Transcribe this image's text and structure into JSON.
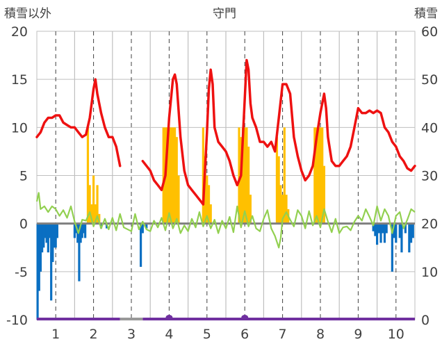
{
  "chart_data": {
    "type": "line",
    "title": "守門",
    "left_axis_title": "積雪以外",
    "right_axis_title": "積雪",
    "left_axis": {
      "min": -10,
      "max": 20,
      "ticks": [
        -10,
        -5,
        0,
        5,
        10,
        15,
        20
      ]
    },
    "right_axis": {
      "min": 0,
      "max": 60,
      "ticks": [
        0,
        10,
        20,
        30,
        40,
        50,
        60
      ]
    },
    "x_range": [
      0.5,
      10.5
    ],
    "x_ticks": [
      1,
      2,
      3,
      4,
      5,
      6,
      7,
      8,
      9,
      10
    ],
    "grid": {
      "vertical_dashed": [
        1,
        2,
        3,
        4,
        5,
        6,
        7,
        8,
        9,
        10
      ],
      "vertical_solid": [
        1.5,
        2.5,
        3.5,
        4.5,
        5.5,
        6.5,
        7.5,
        8.5,
        9.5
      ],
      "horizontal": true
    },
    "colors": {
      "snow_depth": "#ee1111",
      "positive_bars": "#ffc000",
      "negative_bars": "#0a6fc2",
      "line_green": "#92d050",
      "bottom_purple": "#7030a0",
      "bottom_gray": "#999999",
      "grid": "#bfbfbf",
      "zero_line": "#7f7f7f"
    },
    "series": [
      {
        "kind": "line_right_axis",
        "color_key": "snow_depth",
        "segments": [
          [
            [
              0.5,
              38
            ],
            [
              0.6,
              39
            ],
            [
              0.7,
              41
            ],
            [
              0.8,
              42
            ],
            [
              0.9,
              42
            ],
            [
              1.0,
              42.5
            ],
            [
              1.1,
              42.5
            ],
            [
              1.2,
              41
            ],
            [
              1.3,
              40.5
            ],
            [
              1.4,
              40
            ],
            [
              1.5,
              40
            ],
            [
              1.6,
              39
            ],
            [
              1.7,
              38
            ],
            [
              1.8,
              38.5
            ],
            [
              1.9,
              42
            ],
            [
              2.0,
              48
            ],
            [
              2.05,
              50
            ],
            [
              2.1,
              47
            ],
            [
              2.2,
              43
            ],
            [
              2.3,
              40
            ],
            [
              2.4,
              38
            ],
            [
              2.5,
              38
            ],
            [
              2.6,
              36
            ],
            [
              2.7,
              32
            ]
          ],
          [
            [
              3.3,
              33
            ],
            [
              3.4,
              32
            ],
            [
              3.5,
              31
            ],
            [
              3.6,
              29
            ],
            [
              3.7,
              28
            ],
            [
              3.8,
              27
            ],
            [
              3.9,
              30
            ],
            [
              4.0,
              42
            ],
            [
              4.1,
              50
            ],
            [
              4.15,
              51
            ],
            [
              4.2,
              49
            ],
            [
              4.3,
              38
            ],
            [
              4.4,
              31
            ],
            [
              4.5,
              28
            ],
            [
              4.6,
              27
            ],
            [
              4.7,
              26
            ],
            [
              4.8,
              25
            ],
            [
              4.9,
              24
            ],
            [
              5.0,
              39
            ],
            [
              5.05,
              48
            ],
            [
              5.1,
              52
            ],
            [
              5.15,
              49
            ],
            [
              5.2,
              40
            ],
            [
              5.3,
              37
            ],
            [
              5.4,
              36
            ],
            [
              5.5,
              35
            ],
            [
              5.6,
              33
            ],
            [
              5.7,
              30
            ],
            [
              5.8,
              28
            ],
            [
              5.9,
              30
            ],
            [
              6.0,
              46
            ],
            [
              6.05,
              54
            ],
            [
              6.1,
              52
            ],
            [
              6.15,
              45
            ],
            [
              6.2,
              42
            ],
            [
              6.3,
              40
            ],
            [
              6.4,
              37
            ],
            [
              6.5,
              37
            ],
            [
              6.6,
              36
            ],
            [
              6.7,
              37
            ],
            [
              6.8,
              35
            ],
            [
              6.9,
              42
            ],
            [
              7.0,
              49
            ],
            [
              7.1,
              49
            ],
            [
              7.2,
              47
            ],
            [
              7.3,
              38
            ],
            [
              7.4,
              34
            ],
            [
              7.5,
              31
            ],
            [
              7.6,
              29
            ],
            [
              7.7,
              30
            ],
            [
              7.8,
              32
            ],
            [
              7.9,
              38
            ],
            [
              8.0,
              43
            ],
            [
              8.1,
              47
            ],
            [
              8.15,
              44
            ],
            [
              8.2,
              38
            ],
            [
              8.3,
              33
            ],
            [
              8.4,
              32
            ],
            [
              8.5,
              32
            ],
            [
              8.6,
              33
            ],
            [
              8.7,
              34
            ],
            [
              8.8,
              36
            ],
            [
              8.9,
              40
            ],
            [
              9.0,
              44
            ],
            [
              9.1,
              43
            ],
            [
              9.2,
              43
            ],
            [
              9.3,
              43.5
            ],
            [
              9.4,
              43
            ],
            [
              9.5,
              43.5
            ],
            [
              9.6,
              43
            ],
            [
              9.7,
              40
            ],
            [
              9.8,
              39
            ],
            [
              9.9,
              37
            ],
            [
              10.0,
              36
            ],
            [
              10.1,
              34
            ],
            [
              10.2,
              33
            ],
            [
              10.3,
              31.5
            ],
            [
              10.4,
              31
            ],
            [
              10.5,
              32
            ]
          ]
        ]
      },
      {
        "kind": "line_left_axis",
        "color_key": "line_green",
        "points": [
          [
            0.5,
            2.3
          ],
          [
            0.55,
            3.2
          ],
          [
            0.6,
            1.5
          ],
          [
            0.7,
            1.8
          ],
          [
            0.8,
            1.2
          ],
          [
            0.9,
            1.8
          ],
          [
            1.0,
            1.5
          ],
          [
            1.1,
            0.8
          ],
          [
            1.2,
            1.4
          ],
          [
            1.3,
            0.6
          ],
          [
            1.4,
            1.8
          ],
          [
            1.5,
            0.2
          ],
          [
            1.6,
            -1
          ],
          [
            1.7,
            0.4
          ],
          [
            1.8,
            0.3
          ],
          [
            1.9,
            1.2
          ],
          [
            2.0,
            -0.3
          ],
          [
            2.1,
            0.8
          ],
          [
            2.2,
            -0.5
          ],
          [
            2.3,
            0.5
          ],
          [
            2.4,
            -0.6
          ],
          [
            2.5,
            0.6
          ],
          [
            2.6,
            -0.7
          ],
          [
            2.7,
            1
          ],
          [
            2.8,
            -0.4
          ],
          [
            3.0,
            -0.8
          ],
          [
            3.1,
            1
          ],
          [
            3.2,
            -0.6
          ],
          [
            3.3,
            0.2
          ],
          [
            3.4,
            -0.6
          ],
          [
            3.5,
            -0.8
          ],
          [
            3.6,
            0.3
          ],
          [
            3.7,
            -0.4
          ],
          [
            3.8,
            0.6
          ],
          [
            3.9,
            -0.7
          ],
          [
            4.0,
            1.1
          ],
          [
            4.1,
            -0.5
          ],
          [
            4.2,
            0.5
          ],
          [
            4.3,
            -1
          ],
          [
            4.4,
            -0.2
          ],
          [
            4.5,
            -0.8
          ],
          [
            4.6,
            0.5
          ],
          [
            4.7,
            -0.4
          ],
          [
            4.8,
            1.2
          ],
          [
            4.9,
            -0.3
          ],
          [
            5.0,
            0.8
          ],
          [
            5.1,
            -0.5
          ],
          [
            5.2,
            0.4
          ],
          [
            5.3,
            -1
          ],
          [
            5.4,
            0.3
          ],
          [
            5.5,
            -0.5
          ],
          [
            5.6,
            0.7
          ],
          [
            5.7,
            -0.9
          ],
          [
            5.8,
            1.8
          ],
          [
            5.9,
            -0.4
          ],
          [
            6.0,
            1.3
          ],
          [
            6.1,
            -0.3
          ],
          [
            6.2,
            0.8
          ],
          [
            6.3,
            -0.5
          ],
          [
            6.4,
            -0.8
          ],
          [
            6.5,
            0.5
          ],
          [
            6.6,
            1.4
          ],
          [
            6.7,
            -0.5
          ],
          [
            6.8,
            -1.3
          ],
          [
            6.9,
            -2.5
          ],
          [
            6.95,
            -1.5
          ],
          [
            7.0,
            0.5
          ],
          [
            7.1,
            1.2
          ],
          [
            7.2,
            0.4
          ],
          [
            7.3,
            -0.3
          ],
          [
            7.4,
            1.4
          ],
          [
            7.5,
            0.8
          ],
          [
            7.6,
            -0.5
          ],
          [
            7.7,
            1.3
          ],
          [
            7.8,
            -0.2
          ],
          [
            7.9,
            0.8
          ],
          [
            8.0,
            -0.4
          ],
          [
            8.1,
            1.5
          ],
          [
            8.2,
            0.2
          ],
          [
            8.3,
            -0.9
          ],
          [
            8.4,
            0.5
          ],
          [
            8.5,
            -1
          ],
          [
            8.6,
            -0.4
          ],
          [
            8.7,
            -0.3
          ],
          [
            8.8,
            -0.7
          ],
          [
            8.9,
            0.2
          ],
          [
            9.0,
            0.8
          ],
          [
            9.1,
            0.3
          ],
          [
            9.2,
            1.5
          ],
          [
            9.3,
            0.7
          ],
          [
            9.4,
            -0.2
          ],
          [
            9.5,
            1.8
          ],
          [
            9.6,
            0.3
          ],
          [
            9.7,
            1.5
          ],
          [
            9.8,
            0.8
          ],
          [
            9.9,
            -1
          ],
          [
            10.0,
            0.8
          ],
          [
            10.1,
            1.2
          ],
          [
            10.2,
            -0.5
          ],
          [
            10.3,
            0.4
          ],
          [
            10.4,
            1.5
          ],
          [
            10.5,
            1.2
          ]
        ]
      },
      {
        "kind": "bars_left_axis_positive",
        "color_key": "positive_bars",
        "bars": [
          [
            1.85,
            10
          ],
          [
            1.9,
            4
          ],
          [
            1.95,
            2
          ],
          [
            2.0,
            5
          ],
          [
            2.05,
            2
          ],
          [
            2.1,
            4
          ],
          [
            2.15,
            1
          ],
          [
            3.85,
            10
          ],
          [
            3.9,
            10
          ],
          [
            3.95,
            10
          ],
          [
            4.0,
            10
          ],
          [
            4.05,
            10
          ],
          [
            4.1,
            10
          ],
          [
            4.15,
            10
          ],
          [
            4.2,
            9
          ],
          [
            4.25,
            5
          ],
          [
            4.9,
            10
          ],
          [
            4.95,
            7
          ],
          [
            5.0,
            5
          ],
          [
            5.05,
            4
          ],
          [
            5.1,
            2
          ],
          [
            5.85,
            10
          ],
          [
            5.9,
            9
          ],
          [
            5.95,
            10
          ],
          [
            6.0,
            10
          ],
          [
            6.05,
            10
          ],
          [
            6.1,
            8
          ],
          [
            6.15,
            3
          ],
          [
            6.85,
            9
          ],
          [
            6.9,
            7
          ],
          [
            6.95,
            4
          ],
          [
            7.0,
            3
          ],
          [
            7.05,
            10
          ],
          [
            7.1,
            3
          ],
          [
            7.15,
            1.5
          ],
          [
            7.85,
            10
          ],
          [
            7.9,
            10
          ],
          [
            7.95,
            10
          ],
          [
            8.0,
            10
          ],
          [
            8.05,
            10
          ],
          [
            8.1,
            6
          ]
        ]
      },
      {
        "kind": "bars_left_axis_negative",
        "color_key": "negative_bars",
        "bars": [
          [
            0.52,
            -10
          ],
          [
            0.56,
            -7
          ],
          [
            0.6,
            -5
          ],
          [
            0.64,
            -3
          ],
          [
            0.68,
            -2.5
          ],
          [
            0.72,
            -1.5
          ],
          [
            0.76,
            -2
          ],
          [
            0.8,
            -3
          ],
          [
            0.84,
            -1.5
          ],
          [
            0.88,
            -8
          ],
          [
            0.92,
            -4
          ],
          [
            0.96,
            -2.5
          ],
          [
            1.0,
            -2.5
          ],
          [
            1.04,
            -1.5
          ],
          [
            1.5,
            -1.5
          ],
          [
            1.54,
            -1
          ],
          [
            1.58,
            -2
          ],
          [
            1.62,
            -6
          ],
          [
            1.66,
            -2
          ],
          [
            1.7,
            -1.5
          ],
          [
            1.74,
            -1
          ],
          [
            1.78,
            -1.5
          ],
          [
            2.2,
            -0.5
          ],
          [
            2.35,
            -0.5
          ],
          [
            3.25,
            -4.5
          ],
          [
            3.3,
            -1
          ],
          [
            3.4,
            -0.5
          ],
          [
            9.4,
            -0.8
          ],
          [
            9.45,
            -1.3
          ],
          [
            9.5,
            -2.2
          ],
          [
            9.55,
            -1
          ],
          [
            9.6,
            -2
          ],
          [
            9.65,
            -1
          ],
          [
            9.7,
            -2
          ],
          [
            9.75,
            -1
          ],
          [
            9.9,
            -5
          ],
          [
            9.95,
            -1.5
          ],
          [
            10.0,
            -2
          ],
          [
            10.1,
            -1.5
          ],
          [
            10.15,
            -3
          ],
          [
            10.25,
            -1
          ],
          [
            10.35,
            -3
          ],
          [
            10.4,
            -2
          ],
          [
            10.45,
            -1.5
          ]
        ]
      },
      {
        "kind": "bottom_line",
        "color_key": "bottom_purple",
        "segments": [
          [
            0.5,
            2.7
          ],
          [
            3.3,
            10.5
          ]
        ],
        "blips": [
          4.0,
          6.0
        ]
      },
      {
        "kind": "bottom_line",
        "color_key": "bottom_gray",
        "segments": [
          [
            2.7,
            3.3
          ]
        ]
      }
    ]
  }
}
